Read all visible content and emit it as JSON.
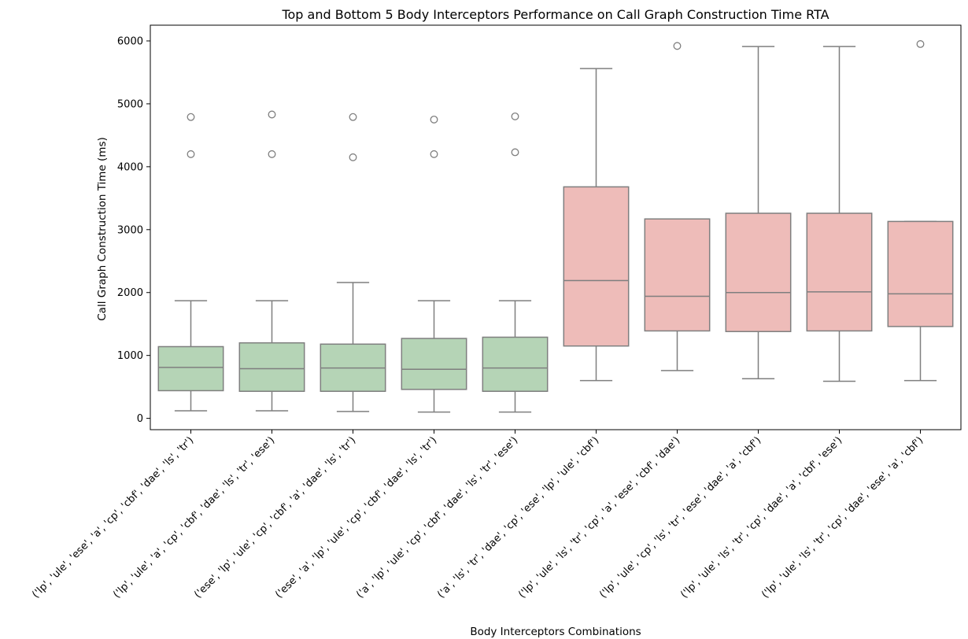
{
  "chart_data": {
    "type": "box",
    "title": "Top and Bottom 5 Body Interceptors Performance on Call Graph Construction Time RTA",
    "xlabel": "Body Interceptors Combinations",
    "ylabel": "Call Graph Construction Time (ms)",
    "ylim": [
      -180,
      6250
    ],
    "yticks": [
      0,
      1000,
      2000,
      3000,
      4000,
      5000,
      6000
    ],
    "grid": false,
    "colors": {
      "top": "#b5d4b6",
      "bottom": "#eebcb9",
      "edge": "#7f7f7f"
    },
    "categories": [
      "('lp', 'ule', 'ese', 'a', 'cp', 'cbf', 'dae', 'ls', 'tr')",
      "('lp', 'ule', 'a', 'cp', 'cbf', 'dae', 'ls', 'tr', 'ese')",
      "('ese', 'lp', 'ule', 'cp', 'cbf', 'a', 'dae', 'ls', 'tr')",
      "('ese', 'a', 'lp', 'ule', 'cp', 'cbf', 'dae', 'ls', 'tr')",
      "('a', 'lp', 'ule', 'cp', 'cbf', 'dae', 'ls', 'tr', 'ese')",
      "('a', 'ls', 'tr', 'dae', 'cp', 'ese', 'lp', 'ule', 'cbf')",
      "('lp', 'ule', 'ls', 'tr', 'cp', 'a', 'ese', 'cbf', 'dae')",
      "('lp', 'ule', 'cp', 'ls', 'tr', 'ese', 'dae', 'a', 'cbf')",
      "('lp', 'ule', 'ls', 'tr', 'cp', 'dae', 'a', 'cbf', 'ese')",
      "('lp', 'ule', 'ls', 'tr', 'cp', 'dae', 'ese', 'a', 'cbf')"
    ],
    "boxes": [
      {
        "group": "top",
        "whisker_low": 120,
        "q1": 440,
        "median": 810,
        "q3": 1140,
        "whisker_high": 1870,
        "outliers": [
          4200,
          4790
        ]
      },
      {
        "group": "top",
        "whisker_low": 120,
        "q1": 430,
        "median": 790,
        "q3": 1200,
        "whisker_high": 1870,
        "outliers": [
          4200,
          4830
        ]
      },
      {
        "group": "top",
        "whisker_low": 110,
        "q1": 430,
        "median": 800,
        "q3": 1180,
        "whisker_high": 2160,
        "outliers": [
          4150,
          4790
        ]
      },
      {
        "group": "top",
        "whisker_low": 100,
        "q1": 460,
        "median": 780,
        "q3": 1270,
        "whisker_high": 1870,
        "outliers": [
          4200,
          4750
        ]
      },
      {
        "group": "top",
        "whisker_low": 100,
        "q1": 430,
        "median": 800,
        "q3": 1290,
        "whisker_high": 1870,
        "outliers": [
          4230,
          4800
        ]
      },
      {
        "group": "bottom",
        "whisker_low": 600,
        "q1": 1150,
        "median": 2190,
        "q3": 3680,
        "whisker_high": 5560,
        "outliers": []
      },
      {
        "group": "bottom",
        "whisker_low": 760,
        "q1": 1390,
        "median": 1940,
        "q3": 3170,
        "whisker_high": 3170,
        "outliers": [
          5920
        ]
      },
      {
        "group": "bottom",
        "whisker_low": 630,
        "q1": 1380,
        "median": 2000,
        "q3": 3260,
        "whisker_high": 5910,
        "outliers": []
      },
      {
        "group": "bottom",
        "whisker_low": 590,
        "q1": 1390,
        "median": 2010,
        "q3": 3260,
        "whisker_high": 5910,
        "outliers": []
      },
      {
        "group": "bottom",
        "whisker_low": 600,
        "q1": 1460,
        "median": 1980,
        "q3": 3130,
        "whisker_high": 3130,
        "outliers": [
          5950
        ]
      }
    ]
  }
}
